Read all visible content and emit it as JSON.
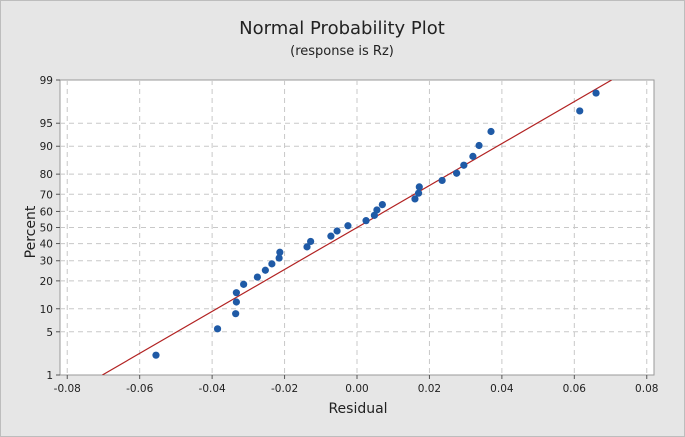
{
  "chart_data": {
    "type": "scatter",
    "title": "Normal Probability Plot",
    "subtitle": "(response is Rz)",
    "xlabel": "Residual",
    "ylabel": "Percent",
    "x_scale": "linear",
    "y_scale": "normal-probability",
    "xlim": [
      -0.082,
      0.082
    ],
    "ylim": [
      1,
      99
    ],
    "x_ticks": [
      -0.08,
      -0.06,
      -0.04,
      -0.02,
      0.0,
      0.02,
      0.04,
      0.06,
      0.08
    ],
    "x_tick_labels": [
      "-0.08",
      "-0.06",
      "-0.04",
      "-0.02",
      "0.00",
      "0.02",
      "0.04",
      "0.06",
      "0.08"
    ],
    "y_ticks": [
      1,
      5,
      10,
      20,
      30,
      40,
      50,
      60,
      70,
      80,
      90,
      95,
      99
    ],
    "y_tick_labels": [
      "1",
      "5",
      "10",
      "20",
      "30",
      "40",
      "50",
      "60",
      "70",
      "80",
      "90",
      "95",
      "99"
    ],
    "grid": true,
    "colors": {
      "points": "#1f5aa6",
      "fit_line": "#b22222",
      "grid": "#c8c8c8",
      "background": "#e6e6e6",
      "plot_area": "#ffffff"
    },
    "fit_line": {
      "x": [
        -0.0703,
        0.0703
      ],
      "percent": [
        1,
        99
      ]
    },
    "points": [
      {
        "x": -0.0555,
        "y": 2.2
      },
      {
        "x": -0.0385,
        "y": 5.5
      },
      {
        "x": -0.0335,
        "y": 8.7
      },
      {
        "x": -0.0333,
        "y": 12.0
      },
      {
        "x": -0.0333,
        "y": 15.2
      },
      {
        "x": -0.0313,
        "y": 18.5
      },
      {
        "x": -0.0275,
        "y": 21.7
      },
      {
        "x": -0.0253,
        "y": 25.0
      },
      {
        "x": -0.0235,
        "y": 28.3
      },
      {
        "x": -0.0215,
        "y": 31.5
      },
      {
        "x": -0.0213,
        "y": 34.8
      },
      {
        "x": -0.0138,
        "y": 38.0
      },
      {
        "x": -0.0128,
        "y": 41.3
      },
      {
        "x": -0.0072,
        "y": 44.6
      },
      {
        "x": -0.0055,
        "y": 47.8
      },
      {
        "x": -0.0025,
        "y": 51.1
      },
      {
        "x": 0.0025,
        "y": 54.3
      },
      {
        "x": 0.0048,
        "y": 57.6
      },
      {
        "x": 0.0055,
        "y": 60.9
      },
      {
        "x": 0.007,
        "y": 64.1
      },
      {
        "x": 0.016,
        "y": 67.4
      },
      {
        "x": 0.017,
        "y": 70.6
      },
      {
        "x": 0.0172,
        "y": 73.9
      },
      {
        "x": 0.0235,
        "y": 77.1
      },
      {
        "x": 0.0275,
        "y": 80.4
      },
      {
        "x": 0.0295,
        "y": 83.7
      },
      {
        "x": 0.032,
        "y": 86.9
      },
      {
        "x": 0.0337,
        "y": 90.2
      },
      {
        "x": 0.037,
        "y": 93.5
      },
      {
        "x": 0.0615,
        "y": 96.7
      },
      {
        "x": 0.066,
        "y": 98.3
      }
    ]
  }
}
